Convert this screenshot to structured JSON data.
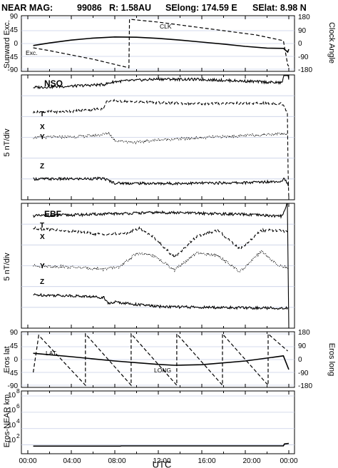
{
  "header": {
    "instrument": "NEAR MAG:",
    "day": "99086",
    "range": "R: 1.58AU",
    "selong": "SElong:  174.59 E",
    "selat": "SElat:    8.98 N"
  },
  "chart_data": [
    {
      "id": "sunward",
      "type": "line",
      "ylabel": "Sunward Exc.",
      "ylabel_right": "Clock Angle",
      "yticks": [
        "90",
        "45",
        "0",
        "-45",
        "-90"
      ],
      "yticks_right": [
        "180",
        "90",
        "0",
        "-90",
        "-180"
      ],
      "ylim": [
        -90,
        90
      ],
      "ylim_right": [
        -180,
        180
      ],
      "labels": [
        "CLK",
        "Exc."
      ],
      "series": [
        {
          "name": "Exc.",
          "style": "solid",
          "x": [
            0.5,
            2,
            4,
            6,
            8,
            10,
            12,
            14,
            16,
            18,
            20,
            22,
            23.5,
            23.9,
            24
          ],
          "y": [
            -7,
            2,
            12,
            19,
            23,
            22,
            18,
            12,
            5,
            -2,
            -10,
            -16,
            -17,
            -30,
            -20
          ]
        },
        {
          "name": "CLK",
          "style": "dashed",
          "x": [
            0.5,
            2,
            4,
            6,
            9.3,
            9.35,
            12,
            15,
            18,
            21,
            23.5,
            23.9,
            24
          ],
          "y": [
            -30,
            -50,
            -80,
            -110,
            -170,
            170,
            150,
            120,
            90,
            60,
            20,
            -150,
            -160
          ]
        }
      ]
    },
    {
      "id": "nso",
      "type": "line",
      "title": "NSO",
      "ylabel": "5 nT/div",
      "series_labels": [
        "T",
        "X",
        "Y",
        "Z"
      ],
      "series": [
        {
          "name": "T",
          "style": "solid",
          "offset": 27,
          "x": [
            0.5,
            4,
            7,
            8,
            12,
            16,
            20,
            23.4,
            23.6,
            23.9,
            24.0
          ],
          "y": [
            0,
            0.3,
            0.7,
            1.4,
            2.0,
            1.9,
            1.5,
            1.1,
            4.0,
            6.0,
            1.8
          ]
        },
        {
          "name": "X",
          "style": "dashed",
          "offset": 21,
          "x": [
            0.5,
            4,
            7,
            7.2,
            8,
            9,
            12,
            16,
            20,
            23.4,
            23.9,
            24.0
          ],
          "y": [
            0,
            0.3,
            0.9,
            2.5,
            2.8,
            2.6,
            2.3,
            2.1,
            2.2,
            2.1,
            0,
            -40
          ]
        },
        {
          "name": "Y",
          "style": "dotted",
          "offset": 15,
          "x": [
            0.5,
            4,
            6.5,
            7.5,
            8,
            10,
            12,
            16,
            20,
            23.4,
            23.9
          ],
          "y": [
            0,
            0.1,
            0.5,
            1.0,
            -0.8,
            -1.2,
            -0.6,
            -0.1,
            0.4,
            0.9,
            0.7
          ]
        },
        {
          "name": "Z",
          "style": "solid",
          "offset": 5,
          "x": [
            0.5,
            4,
            7,
            8,
            12,
            16,
            20,
            23.4,
            23.6,
            24.0
          ],
          "y": [
            0,
            0,
            0.1,
            -1.0,
            -1.1,
            -1.0,
            -0.9,
            -0.5,
            0.3,
            -2.0
          ]
        }
      ]
    },
    {
      "id": "ebf",
      "type": "line",
      "title": "EBF",
      "ylabel": "5 nT/div",
      "series_labels": [
        "T",
        "X",
        "Y",
        "Z"
      ],
      "series": [
        {
          "name": "T",
          "style": "solid",
          "offset": 27,
          "x": [
            0.5,
            4,
            8,
            12,
            16,
            20,
            23.4,
            23.6,
            23.9,
            24.0
          ],
          "y": [
            0,
            0.2,
            0.5,
            0.8,
            0.6,
            0.3,
            -0.1,
            1.5,
            3.2,
            -40
          ]
        },
        {
          "name": "X",
          "style": "dashed",
          "offset": 24,
          "x": [
            0.5,
            3,
            5,
            7,
            9,
            10.3,
            11.5,
            13.5,
            15.5,
            17.5,
            19.5,
            21.5,
            23.0,
            23.9
          ],
          "y": [
            0,
            -0.5,
            -1.0,
            -1.5,
            -1.2,
            0,
            -2,
            -7,
            -2,
            -0.5,
            -5,
            -0.5,
            -0.5,
            -0.8
          ]
        },
        {
          "name": "Y",
          "style": "dotted",
          "offset": 15,
          "x": [
            0.5,
            3,
            5,
            7,
            8.5,
            10,
            11.5,
            13.5,
            15.5,
            17.5,
            19.5,
            21.5,
            23.0,
            23.9
          ],
          "y": [
            0,
            -0.2,
            -0.5,
            -0.8,
            -0.2,
            3.0,
            2.5,
            -1.0,
            3.0,
            2.5,
            -1.5,
            3.5,
            0,
            -0.5
          ]
        },
        {
          "name": "Z",
          "style": "solid",
          "offset": 8,
          "x": [
            0.5,
            4,
            7,
            7.5,
            8,
            10,
            12,
            16,
            20,
            23.9
          ],
          "y": [
            0,
            -0.2,
            -0.6,
            -2.2,
            -1.7,
            -2.3,
            -2.8,
            -3.0,
            -3.1,
            -3.2
          ]
        }
      ]
    },
    {
      "id": "eros",
      "type": "line",
      "ylabel": "Eros lat",
      "ylabel_right": "Eros long",
      "yticks": [
        "90",
        "45",
        "0",
        "-45",
        "-90"
      ],
      "yticks_right": [
        "180",
        "90",
        "0",
        "-90",
        "-180"
      ],
      "ylim": [
        -90,
        90
      ],
      "ylim_right": [
        -180,
        180
      ],
      "labels": [
        "LAT",
        "LONG"
      ],
      "series": [
        {
          "name": "LAT",
          "style": "solid",
          "x": [
            0.5,
            4,
            8,
            12,
            13.5,
            16,
            20,
            23.5,
            24.0
          ],
          "y": [
            22,
            10,
            -5,
            -17,
            -20,
            -18,
            -5,
            13,
            -35
          ]
        },
        {
          "name": "LONG",
          "style": "dashed",
          "x": [
            0.5,
            1.0,
            5.3,
            5.3,
            9.5,
            9.5,
            13.7,
            13.7,
            17.9,
            17.9,
            22.1,
            22.1,
            23.9
          ],
          "y": [
            -90,
            170,
            -180,
            180,
            -180,
            180,
            -180,
            180,
            -180,
            180,
            -180,
            180,
            60
          ]
        }
      ]
    },
    {
      "id": "range",
      "type": "line",
      "ylabel": "Eros-NEAR km",
      "yscale": "log",
      "ylim_exp": [
        1,
        8
      ],
      "yticks": [
        "10",
        "10",
        "10",
        "10"
      ],
      "ytick_exps": [
        "8",
        "6",
        "4",
        "2"
      ],
      "series": [
        {
          "name": "range",
          "style": "solid",
          "x": [
            0.5,
            8.5,
            8.6,
            23.5,
            23.6,
            24.0
          ],
          "y": [
            70,
            70,
            75,
            75,
            130,
            150
          ]
        }
      ]
    }
  ],
  "xaxis": {
    "ticks": [
      "00:00",
      "04:00",
      "08:00",
      "12:00",
      "16:00",
      "20:00",
      "00:00"
    ],
    "xlabel": "UTC"
  }
}
